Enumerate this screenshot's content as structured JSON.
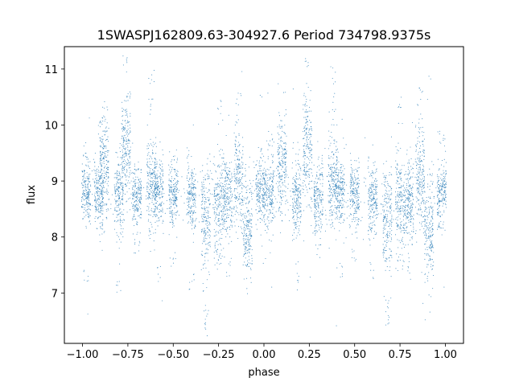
{
  "chart_data": {
    "type": "scatter",
    "title": "1SWASPJ162809.63-304927.6 Period 734798.9375s",
    "xlabel": "phase",
    "ylabel": "flux",
    "xlim": [
      -1.1,
      1.1
    ],
    "ylim": [
      6.1,
      11.4
    ],
    "xticks": [
      -1.0,
      -0.75,
      -0.5,
      -0.25,
      0.0,
      0.25,
      0.5,
      0.75,
      1.0
    ],
    "xtick_labels": [
      "−1.00",
      "−0.75",
      "−0.50",
      "−0.25",
      "0.00",
      "0.25",
      "0.50",
      "0.75",
      "1.00"
    ],
    "yticks": [
      7,
      8,
      9,
      10,
      11
    ],
    "ytick_labels": [
      "7",
      "8",
      "9",
      "10",
      "11"
    ],
    "grid": false,
    "marker_color": "#1f77b4",
    "series": [
      {
        "phase_profile": [
          {
            "x": -0.98,
            "center": 8.8,
            "spread": 0.25,
            "extra": [
              9.6,
              7.3
            ]
          },
          {
            "x": -0.91,
            "center": 8.75,
            "spread": 0.25,
            "extra": [
              9.9
            ]
          },
          {
            "x": -0.88,
            "center": 9.3,
            "spread": 0.4,
            "extra": [
              10.0
            ]
          },
          {
            "x": -0.8,
            "center": 8.7,
            "spread": 0.35,
            "extra": [
              7.1
            ]
          },
          {
            "x": -0.76,
            "center": 9.6,
            "spread": 0.4,
            "extra": [
              10.4,
              11.1
            ]
          },
          {
            "x": -0.7,
            "center": 8.7,
            "spread": 0.3,
            "extra": [
              7.8
            ]
          },
          {
            "x": -0.62,
            "center": 9.0,
            "spread": 0.4,
            "extra": [
              10.3,
              10.9
            ]
          },
          {
            "x": -0.58,
            "center": 8.8,
            "spread": 0.3,
            "extra": [
              7.3
            ]
          },
          {
            "x": -0.5,
            "center": 8.75,
            "spread": 0.25,
            "extra": [
              7.6
            ]
          },
          {
            "x": -0.4,
            "center": 8.7,
            "spread": 0.3,
            "extra": [
              7.2
            ]
          },
          {
            "x": -0.32,
            "center": 8.3,
            "spread": 0.45,
            "extra": [
              6.5,
              6.7
            ]
          },
          {
            "x": -0.25,
            "center": 8.6,
            "spread": 0.45,
            "extra": [
              7.5,
              10.3
            ]
          },
          {
            "x": -0.2,
            "center": 8.7,
            "spread": 0.35,
            "extra": [
              7.4
            ]
          },
          {
            "x": -0.14,
            "center": 9.1,
            "spread": 0.45,
            "extra": [
              10.5
            ]
          },
          {
            "x": -0.09,
            "center": 8.1,
            "spread": 0.4,
            "extra": [
              7.6
            ]
          },
          {
            "x": -0.02,
            "center": 8.8,
            "spread": 0.25,
            "extra": [
              9.5
            ]
          },
          {
            "x": 0.03,
            "center": 8.8,
            "spread": 0.3,
            "extra": [
              9.8
            ]
          },
          {
            "x": 0.1,
            "center": 9.3,
            "spread": 0.4,
            "extra": [
              10.0
            ]
          },
          {
            "x": 0.18,
            "center": 8.7,
            "spread": 0.35,
            "extra": [
              7.2
            ]
          },
          {
            "x": 0.24,
            "center": 9.6,
            "spread": 0.4,
            "extra": [
              10.3,
              11.1
            ]
          },
          {
            "x": 0.3,
            "center": 8.7,
            "spread": 0.3,
            "extra": [
              7.8
            ]
          },
          {
            "x": 0.38,
            "center": 9.0,
            "spread": 0.4,
            "extra": [
              10.4,
              10.9
            ]
          },
          {
            "x": 0.42,
            "center": 8.8,
            "spread": 0.3,
            "extra": [
              7.4
            ]
          },
          {
            "x": 0.5,
            "center": 8.75,
            "spread": 0.25,
            "extra": [
              7.7
            ]
          },
          {
            "x": 0.6,
            "center": 8.7,
            "spread": 0.3,
            "extra": [
              7.4
            ]
          },
          {
            "x": 0.68,
            "center": 8.3,
            "spread": 0.45,
            "extra": [
              6.5,
              6.7
            ]
          },
          {
            "x": 0.75,
            "center": 8.6,
            "spread": 0.45,
            "extra": [
              7.5,
              10.2
            ]
          },
          {
            "x": 0.8,
            "center": 8.6,
            "spread": 0.35,
            "extra": [
              7.4
            ]
          },
          {
            "x": 0.86,
            "center": 9.1,
            "spread": 0.45,
            "extra": [
              10.5
            ]
          },
          {
            "x": 0.91,
            "center": 8.1,
            "spread": 0.4,
            "extra": [
              7.6
            ]
          },
          {
            "x": 0.98,
            "center": 8.8,
            "spread": 0.3,
            "extra": [
              9.8
            ]
          }
        ]
      }
    ]
  }
}
